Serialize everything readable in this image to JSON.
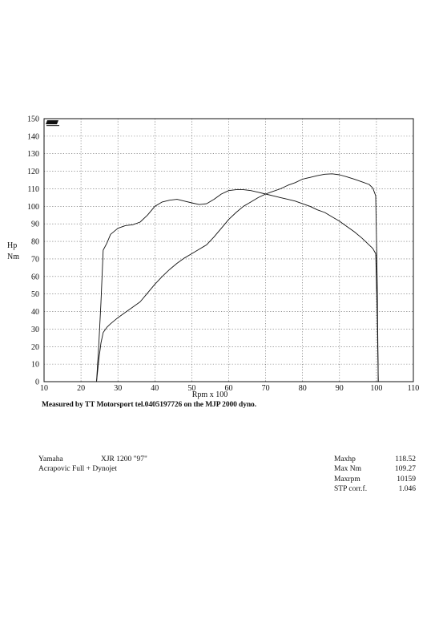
{
  "chart_data": {
    "type": "line",
    "title": "",
    "xlabel": "Rpm x 100",
    "ylabel": "Hp\nNm",
    "xlim": [
      10,
      110
    ],
    "ylim": [
      0,
      150
    ],
    "x_ticks": [
      10,
      20,
      30,
      40,
      50,
      60,
      70,
      80,
      90,
      100,
      110
    ],
    "y_ticks": [
      0,
      10,
      20,
      30,
      40,
      50,
      60,
      70,
      80,
      90,
      100,
      110,
      120,
      130,
      140,
      150
    ],
    "grid": true,
    "series": [
      {
        "name": "",
        "x": [
          24.2,
          24.8,
          25.4,
          26,
          27,
          28,
          30,
          32,
          34,
          36,
          38,
          40,
          42,
          44,
          46,
          48,
          50,
          52,
          54,
          56,
          58,
          60,
          62,
          64,
          66,
          68,
          70,
          72,
          74,
          76,
          78,
          80,
          82,
          84,
          86,
          88,
          90,
          92,
          94,
          96,
          98,
          99,
          99.8,
          100.2,
          100.5
        ],
        "y": [
          0,
          20,
          45,
          75,
          79,
          84,
          87.5,
          89,
          89.5,
          91,
          95,
          100,
          102.5,
          103.5,
          104,
          103,
          102,
          101,
          101.5,
          104,
          107,
          109,
          109.5,
          109.5,
          109,
          108,
          107,
          106,
          105,
          104,
          103,
          101.5,
          100,
          98,
          96.5,
          94,
          91.5,
          88.5,
          85.5,
          82,
          78,
          76,
          73,
          40,
          0
        ]
      },
      {
        "name": "",
        "x": [
          24.2,
          24.8,
          25.4,
          26,
          27,
          28,
          30,
          32,
          34,
          36,
          38,
          40,
          42,
          44,
          46,
          48,
          50,
          52,
          54,
          56,
          58,
          60,
          62,
          64,
          66,
          68,
          70,
          72,
          74,
          76,
          78,
          80,
          82,
          84,
          86,
          88,
          90,
          92,
          94,
          96,
          98,
          99,
          99.8,
          100.2,
          100.5
        ],
        "y": [
          0,
          12,
          22,
          28,
          31,
          33,
          36.5,
          39.5,
          42.5,
          45.5,
          50.5,
          55.5,
          60,
          64,
          67.5,
          70.5,
          73,
          75.5,
          78,
          82.5,
          87.5,
          92.5,
          96.5,
          100,
          102.5,
          105,
          107,
          108.5,
          110,
          112,
          113.5,
          115.5,
          116.5,
          117.5,
          118.3,
          118.52,
          118,
          116.8,
          115.5,
          114,
          112.5,
          110.5,
          106,
          60,
          0
        ]
      }
    ]
  },
  "caption": "Measured by TT Motorsport tel.0405197726 on the MJP 2000 dyno.",
  "vehicle": {
    "make": "Yamaha",
    "model": "XJR 1200 \"97\"",
    "setup": "Acrapovic Full + Dynojet"
  },
  "stats": [
    {
      "label": "Maxhp",
      "value": "118.52"
    },
    {
      "label": "Max Nm",
      "value": "109.27"
    },
    {
      "label": "Maxrpm",
      "value": "10159"
    },
    {
      "label": "STP corr.f.",
      "value": "1.046"
    }
  ]
}
